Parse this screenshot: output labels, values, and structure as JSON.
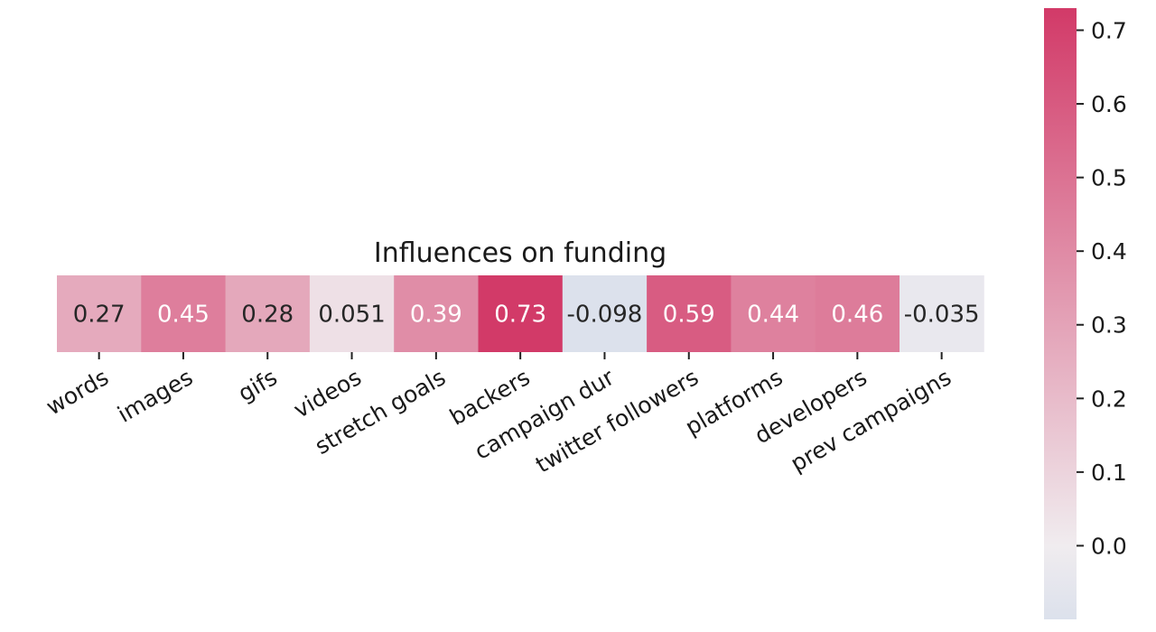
{
  "chart_data": {
    "type": "heatmap",
    "title": "Influences on funding",
    "categories": [
      "words",
      "images",
      "gifs",
      "videos",
      "stretch goals",
      "backers",
      "campaign dur",
      "twitter followers",
      "platforms",
      "developers",
      "prev campaigns"
    ],
    "values": [
      0.27,
      0.45,
      0.28,
      0.051,
      0.39,
      0.73,
      -0.098,
      0.59,
      0.44,
      0.46,
      -0.035
    ],
    "value_labels": [
      "0.27",
      "0.45",
      "0.28",
      "0.051",
      "0.39",
      "0.73",
      "-0.098",
      "0.59",
      "0.44",
      "0.46",
      "-0.035"
    ],
    "colorbar": {
      "range": [
        -0.1,
        0.73
      ],
      "ticks": [
        0.0,
        0.1,
        0.2,
        0.3,
        0.4,
        0.5,
        0.6,
        0.7
      ],
      "tick_labels": [
        "0.0",
        "0.1",
        "0.2",
        "0.3",
        "0.4",
        "0.5",
        "0.6",
        "0.7"
      ]
    },
    "colors": {
      "low": "#dce1ec",
      "center": "#f0ecef",
      "high": "#d23a68"
    },
    "grid": false,
    "legend": "right"
  }
}
